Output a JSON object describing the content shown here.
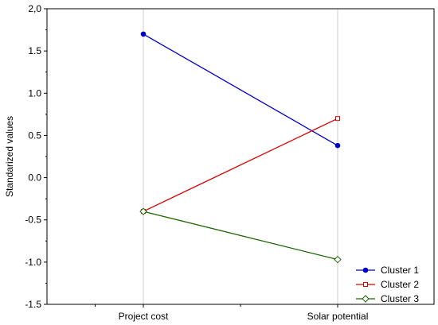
{
  "chart_data": {
    "type": "line",
    "ylabel": "Standarized values",
    "xlabel": "",
    "categories": [
      "Project cost",
      "Solar potential"
    ],
    "ylim": [
      -1.5,
      2.0
    ],
    "yticks": [
      "2,0",
      "1.5",
      "1.0",
      "0.5",
      "0.0",
      "-0.5",
      "-1.0",
      "-1.5"
    ],
    "ytick_values": [
      2.0,
      1.5,
      1.0,
      0.5,
      0.0,
      -0.5,
      -1.0,
      -1.5
    ],
    "grid": "vertical",
    "legend_position": "bottom-right",
    "series": [
      {
        "name": "Cluster 1",
        "values": [
          1.7,
          0.38
        ],
        "color": "#0000cc",
        "marker": "circle"
      },
      {
        "name": "Cluster 2",
        "values": [
          -0.4,
          0.7
        ],
        "color": "#dd0000",
        "marker": "square"
      },
      {
        "name": "Cluster 3",
        "values": [
          -0.4,
          -0.97
        ],
        "color": "#1a6600",
        "marker": "diamond"
      }
    ]
  }
}
